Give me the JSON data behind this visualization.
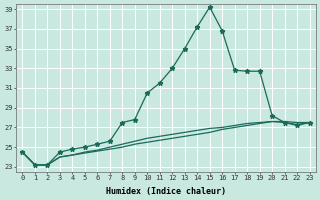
{
  "xlabel": "Humidex (Indice chaleur)",
  "ylabel": "",
  "bg_color": "#c8e8e0",
  "grid_color": "#ffffff",
  "line_color": "#1a6b5a",
  "xlim": [
    -0.5,
    23.5
  ],
  "ylim": [
    22.5,
    39.5
  ],
  "yticks": [
    23,
    25,
    27,
    29,
    31,
    33,
    35,
    37,
    39
  ],
  "xticks": [
    0,
    1,
    2,
    3,
    4,
    5,
    6,
    7,
    8,
    9,
    10,
    11,
    12,
    13,
    14,
    15,
    16,
    17,
    18,
    19,
    20,
    21,
    22,
    23
  ],
  "series": [
    [
      24.5,
      23.2,
      23.2,
      24.5,
      24.8,
      25.0,
      25.3,
      25.6,
      27.5,
      27.8,
      30.5,
      31.5,
      33.0,
      35.0,
      37.2,
      39.2,
      36.8,
      32.8,
      32.7,
      32.7,
      28.2,
      27.5,
      27.2,
      27.5
    ],
    [
      24.5,
      23.2,
      23.2,
      24.0,
      24.2,
      24.4,
      24.6,
      24.8,
      25.0,
      25.3,
      25.5,
      25.7,
      25.9,
      26.1,
      26.3,
      26.5,
      26.8,
      27.0,
      27.2,
      27.4,
      27.6,
      27.5,
      27.3,
      27.5
    ],
    [
      24.5,
      23.2,
      23.2,
      24.0,
      24.2,
      24.5,
      24.7,
      25.0,
      25.3,
      25.6,
      25.9,
      26.1,
      26.3,
      26.5,
      26.7,
      26.9,
      27.0,
      27.2,
      27.4,
      27.5,
      27.6,
      27.6,
      27.5,
      27.5
    ]
  ],
  "marker_series": 0,
  "marker": "*",
  "marker_size": 3.5,
  "tick_fontsize": 5.0,
  "xlabel_fontsize": 6.0,
  "linewidth": 0.9
}
